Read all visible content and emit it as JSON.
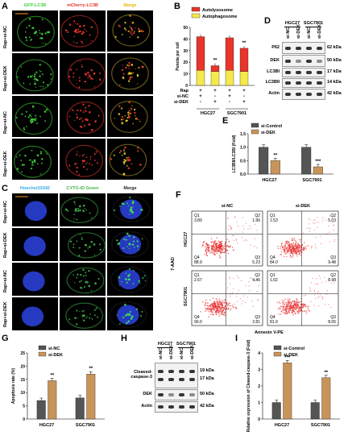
{
  "panelA": {
    "label": "A",
    "cols": [
      "GFP-LC3B",
      "mCherry-LC3B",
      "Merge"
    ],
    "rows": [
      "Rap+si-NC",
      "Rap+si-DEK",
      "Rap+si-NC",
      "Rap+si-DEK"
    ]
  },
  "panelC": {
    "label": "C",
    "cols": [
      "Hoechst33342",
      "CYTO-ID Green",
      "Merge"
    ],
    "rows": [
      "Rap+si-NC",
      "Rap+si-DEK",
      "Rap+si-NC",
      "Rap+si-DEK"
    ]
  },
  "panelB": {
    "label": "B",
    "chart_data": {
      "type": "bar",
      "stacked": true,
      "categories": [
        "HGC27 si-NC",
        "HGC27 si-DEK",
        "SGC7901 si-NC",
        "SGC7901 si-DEK"
      ],
      "series": [
        {
          "name": "Autophagosome",
          "values": [
            13,
            12,
            13,
            12
          ],
          "color": "#f5e84a"
        },
        {
          "name": "Autolysosome",
          "values": [
            29,
            5,
            28,
            20
          ],
          "color": "#e8352b"
        }
      ],
      "ylabel": "Puncta per cell",
      "ylim": [
        0,
        50
      ],
      "yticks": [
        0,
        10,
        20,
        30,
        40,
        50
      ],
      "treatment_rows": [
        {
          "name": "Rap",
          "marks": [
            "+",
            "+",
            "+",
            "+"
          ]
        },
        {
          "name": "si-NC",
          "marks": [
            "+",
            "-",
            "+",
            "-"
          ]
        },
        {
          "name": "si-DEK",
          "marks": [
            "-",
            "+",
            "-",
            "+"
          ]
        }
      ],
      "groups": [
        "HGC27",
        "SGC7901"
      ],
      "annotations": [
        "**",
        "**"
      ]
    }
  },
  "panelD": {
    "label": "D",
    "groups": [
      "HGC27",
      "SGC7901"
    ],
    "lanes": [
      "si-NC",
      "si-DEK",
      "si-NC",
      "si-DEK"
    ],
    "bands": [
      {
        "name": "P62",
        "kda": "62 kDa"
      },
      {
        "name": "DEK",
        "kda": "50 kDa"
      },
      {
        "name": "LC3BI",
        "kda": "17 kDa"
      },
      {
        "name": "LC3BII",
        "kda": "14 kDa"
      },
      {
        "name": "Actin",
        "kda": "42 kDa"
      }
    ]
  },
  "panelE": {
    "label": "E",
    "chart_data": {
      "type": "bar",
      "categories": [
        "HGC27",
        "SGC7901"
      ],
      "series": [
        {
          "name": "si-Control",
          "values": [
            1.0,
            1.0
          ],
          "color": "#555555"
        },
        {
          "name": "si-DEK",
          "values": [
            0.5,
            0.27
          ],
          "color": "#c8945a"
        }
      ],
      "ylabel": "LC3BII/LC3BI (Fold)",
      "ylim": [
        0,
        1.5
      ],
      "yticks": [
        "0.0",
        "0.5",
        "1.0",
        "1.5"
      ],
      "annotations": [
        "**",
        "***"
      ]
    }
  },
  "panelF": {
    "label": "F",
    "cols": [
      "si-NC",
      "si-DEK"
    ],
    "rows": [
      "HGC27",
      "SGC7901"
    ],
    "xlabel": "Annexin V-PE",
    "ylabel": "7-AAD",
    "quadrants": [
      [
        {
          "Q1": "3.89",
          "Q2": "1.96",
          "Q3": "5.23",
          "Q4": "88.9"
        },
        {
          "Q1": "1.53",
          "Q2": "5.03",
          "Q3": "9.48",
          "Q4": "84.0"
        }
      ],
      [
        {
          "Q1": "2.67",
          "Q2": "4.46",
          "Q3": "2.81",
          "Q4": "90.0"
        },
        {
          "Q1": "1.02",
          "Q2": "8.98",
          "Q3": "8.05",
          "Q4": "81.9"
        }
      ]
    ]
  },
  "panelG": {
    "label": "G",
    "chart_data": {
      "type": "bar",
      "categories": [
        "HGC27",
        "SGC7901"
      ],
      "series": [
        {
          "name": "si-NC",
          "values": [
            7,
            8
          ],
          "color": "#555555"
        },
        {
          "name": "si-DEK",
          "values": [
            14.5,
            17
          ],
          "color": "#c8945a"
        }
      ],
      "ylabel": "Apoptosis rate (%)",
      "ylim": [
        0,
        25
      ],
      "yticks": [
        0,
        5,
        10,
        15,
        20,
        25
      ],
      "annotations": [
        "**",
        "**"
      ]
    }
  },
  "panelH": {
    "label": "H",
    "groups": [
      "HGC27",
      "SGC7901"
    ],
    "lanes": [
      "si-NC",
      "si-DEK",
      "si-NC",
      "si-DEK"
    ],
    "bands": [
      {
        "name": "Cleaved-\ncaspase-3",
        "kda": "19 kDa",
        "kda2": "17 kDa"
      },
      {
        "name": "DEK",
        "kda": "50 kDa"
      },
      {
        "name": "Actin",
        "kda": "42 kDa"
      }
    ]
  },
  "panelI": {
    "label": "I",
    "chart_data": {
      "type": "bar",
      "categories": [
        "HGC27",
        "SGC7901"
      ],
      "series": [
        {
          "name": "si-Control",
          "values": [
            1.0,
            1.0
          ],
          "color": "#555555"
        },
        {
          "name": "si-DEK",
          "values": [
            3.4,
            2.5
          ],
          "color": "#c8945a"
        }
      ],
      "ylabel": "Relative expression of Cleaved-caspase-3 (Fold)",
      "ylim": [
        0,
        4
      ],
      "yticks": [
        0,
        1,
        2,
        3,
        4
      ],
      "annotations": [
        "***",
        "**"
      ]
    }
  }
}
